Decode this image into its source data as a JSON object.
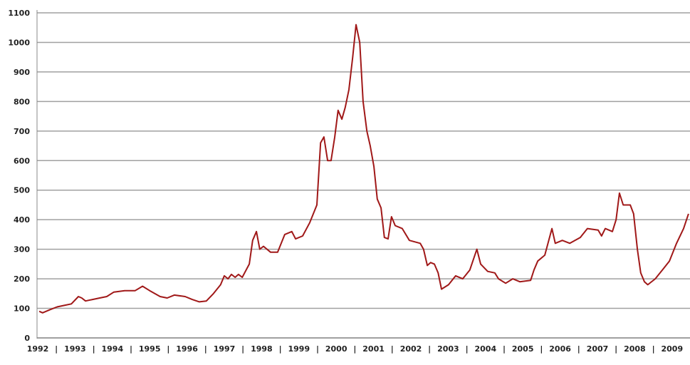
{
  "chart_data": {
    "type": "line",
    "title": "",
    "xlabel": "",
    "ylabel": "",
    "ylim": [
      0,
      1100
    ],
    "xlim": [
      1992,
      2009.45
    ],
    "grid": "horizontal",
    "line_color": "#a01818",
    "grid_color": "#a0a0a0",
    "y_ticks": [
      "0",
      "100",
      "200",
      "300",
      "400",
      "500",
      "600",
      "700",
      "800",
      "900",
      "1000",
      "1100"
    ],
    "x_ticks": [
      "1992",
      "1993",
      "1994",
      "1995",
      "1996",
      "1997",
      "1998",
      "1999",
      "2000",
      "2001",
      "2002",
      "2003",
      "2004",
      "2005",
      "2006",
      "2007",
      "2008",
      "2009"
    ],
    "x_separator": "|",
    "series": [
      {
        "x": [
          1992.04,
          1992.13,
          1992.32,
          1992.52,
          1992.71,
          1992.9,
          1993.09,
          1993.18,
          1993.28,
          1993.47,
          1993.66,
          1993.85,
          1994.04,
          1994.33,
          1994.61,
          1994.81,
          1995.0,
          1995.28,
          1995.47,
          1995.66,
          1995.95,
          1996.14,
          1996.33,
          1996.52,
          1996.71,
          1996.9,
          1997.0,
          1997.1,
          1997.19,
          1997.29,
          1997.38,
          1997.48,
          1997.67,
          1997.76,
          1997.86,
          1997.95,
          1998.05,
          1998.24,
          1998.43,
          1998.62,
          1998.81,
          1998.91,
          1999.1,
          1999.29,
          1999.48,
          1999.58,
          1999.67,
          1999.77,
          1999.86,
          1999.96,
          2000.05,
          2000.15,
          2000.24,
          2000.34,
          2000.44,
          2000.53,
          2000.63,
          2000.72,
          2000.82,
          2000.91,
          2001.01,
          2001.1,
          2001.2,
          2001.29,
          2001.39,
          2001.48,
          2001.58,
          2001.77,
          2001.96,
          2002.25,
          2002.34,
          2002.44,
          2002.53,
          2002.63,
          2002.73,
          2002.82,
          2003.01,
          2003.2,
          2003.39,
          2003.58,
          2003.77,
          2003.87,
          2004.06,
          2004.25,
          2004.35,
          2004.54,
          2004.73,
          2004.92,
          2005.21,
          2005.3,
          2005.4,
          2005.59,
          2005.78,
          2005.87,
          2006.06,
          2006.26,
          2006.54,
          2006.73,
          2007.02,
          2007.11,
          2007.21,
          2007.4,
          2007.5,
          2007.59,
          2007.69,
          2007.88,
          2007.97,
          2008.07,
          2008.16,
          2008.26,
          2008.35,
          2008.55,
          2008.74,
          2008.93,
          2009.12,
          2009.31,
          2009.44
        ],
        "y": [
          90,
          85,
          95,
          105,
          110,
          115,
          140,
          135,
          125,
          130,
          135,
          140,
          155,
          160,
          160,
          175,
          160,
          140,
          135,
          145,
          140,
          130,
          122,
          125,
          150,
          180,
          210,
          200,
          215,
          205,
          215,
          205,
          250,
          330,
          360,
          300,
          310,
          290,
          290,
          350,
          360,
          335,
          345,
          390,
          450,
          660,
          680,
          600,
          600,
          680,
          770,
          740,
          780,
          840,
          950,
          1060,
          1000,
          800,
          700,
          650,
          580,
          470,
          440,
          340,
          335,
          410,
          380,
          370,
          330,
          320,
          300,
          245,
          255,
          250,
          220,
          165,
          180,
          210,
          200,
          230,
          300,
          250,
          225,
          220,
          200,
          185,
          200,
          190,
          195,
          230,
          260,
          280,
          370,
          320,
          330,
          320,
          340,
          370,
          365,
          345,
          370,
          360,
          400,
          490,
          450,
          450,
          420,
          300,
          220,
          190,
          180,
          200,
          230,
          260,
          320,
          370,
          420
        ]
      }
    ]
  }
}
